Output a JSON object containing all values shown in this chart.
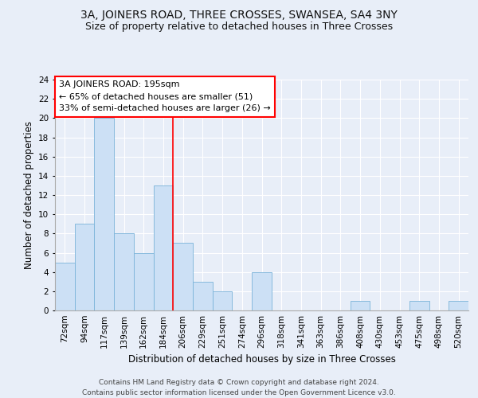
{
  "title1": "3A, JOINERS ROAD, THREE CROSSES, SWANSEA, SA4 3NY",
  "title2": "Size of property relative to detached houses in Three Crosses",
  "xlabel": "Distribution of detached houses by size in Three Crosses",
  "ylabel": "Number of detached properties",
  "categories": [
    "72sqm",
    "94sqm",
    "117sqm",
    "139sqm",
    "162sqm",
    "184sqm",
    "206sqm",
    "229sqm",
    "251sqm",
    "274sqm",
    "296sqm",
    "318sqm",
    "341sqm",
    "363sqm",
    "386sqm",
    "408sqm",
    "430sqm",
    "453sqm",
    "475sqm",
    "498sqm",
    "520sqm"
  ],
  "values": [
    5,
    9,
    20,
    8,
    6,
    13,
    7,
    3,
    2,
    0,
    4,
    0,
    0,
    0,
    0,
    1,
    0,
    0,
    1,
    0,
    1
  ],
  "bar_color": "#cce0f5",
  "bar_edge_color": "#7ab3d9",
  "vline_x": 5.5,
  "vline_color": "red",
  "annotation_title": "3A JOINERS ROAD: 195sqm",
  "annotation_line2": "← 65% of detached houses are smaller (51)",
  "annotation_line3": "33% of semi-detached houses are larger (26) →",
  "annotation_box_color": "white",
  "annotation_box_edge": "red",
  "ylim": [
    0,
    24
  ],
  "yticks": [
    0,
    2,
    4,
    6,
    8,
    10,
    12,
    14,
    16,
    18,
    20,
    22,
    24
  ],
  "footer1": "Contains HM Land Registry data © Crown copyright and database right 2024.",
  "footer2": "Contains public sector information licensed under the Open Government Licence v3.0.",
  "bg_color": "#e8eef8",
  "grid_color": "#ffffff",
  "title1_fontsize": 10,
  "title2_fontsize": 9,
  "xlabel_fontsize": 8.5,
  "ylabel_fontsize": 8.5,
  "footer_fontsize": 6.5,
  "ann_fontsize": 8,
  "tick_fontsize": 7.5
}
